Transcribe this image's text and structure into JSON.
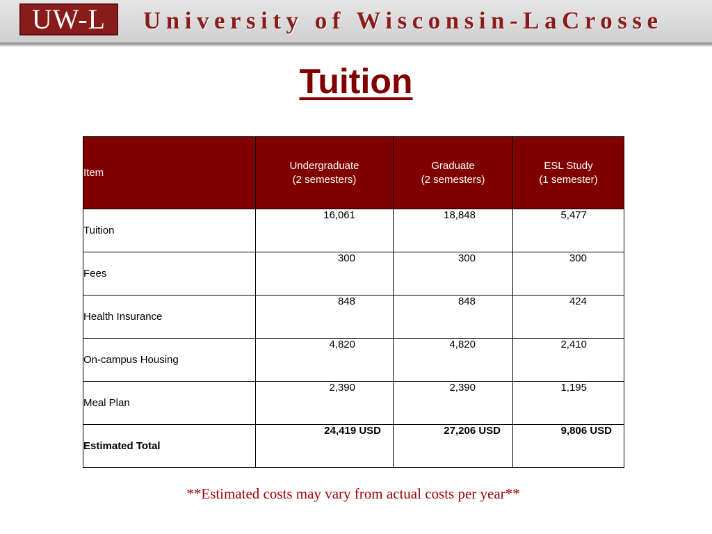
{
  "header": {
    "logo_text": "UW-L",
    "title": "University of Wisconsin-LaCrosse"
  },
  "page": {
    "title": "Tuition",
    "footnote": "**Estimated costs may vary from actual costs per year**"
  },
  "table": {
    "headers": {
      "item": "Item",
      "undergraduate_line1": "Undergraduate",
      "undergraduate_line2": "(2 semesters)",
      "graduate_line1": "Graduate",
      "graduate_line2": "(2 semesters)",
      "esl_line1": "ESL Study",
      "esl_line2": "(1 semester)"
    },
    "rows": [
      {
        "item": "Tuition",
        "undergraduate": "16,061",
        "graduate": "18,848",
        "esl": "5,477"
      },
      {
        "item": "Fees",
        "undergraduate": "300",
        "graduate": "300",
        "esl": "300"
      },
      {
        "item": "Health Insurance",
        "undergraduate": "848",
        "graduate": "848",
        "esl": "424"
      },
      {
        "item": "On-campus Housing",
        "undergraduate": "4,820",
        "graduate": "4,820",
        "esl": "2,410"
      },
      {
        "item": "Meal Plan",
        "undergraduate": "2,390",
        "graduate": "2,390",
        "esl": "1,195"
      },
      {
        "item": "Estimated Total",
        "undergraduate": "24,419 USD",
        "graduate": "27,206 USD",
        "esl": "9,806 USD"
      }
    ]
  },
  "colors": {
    "brand_maroon": "#800000",
    "footnote_red": "#a00000"
  }
}
